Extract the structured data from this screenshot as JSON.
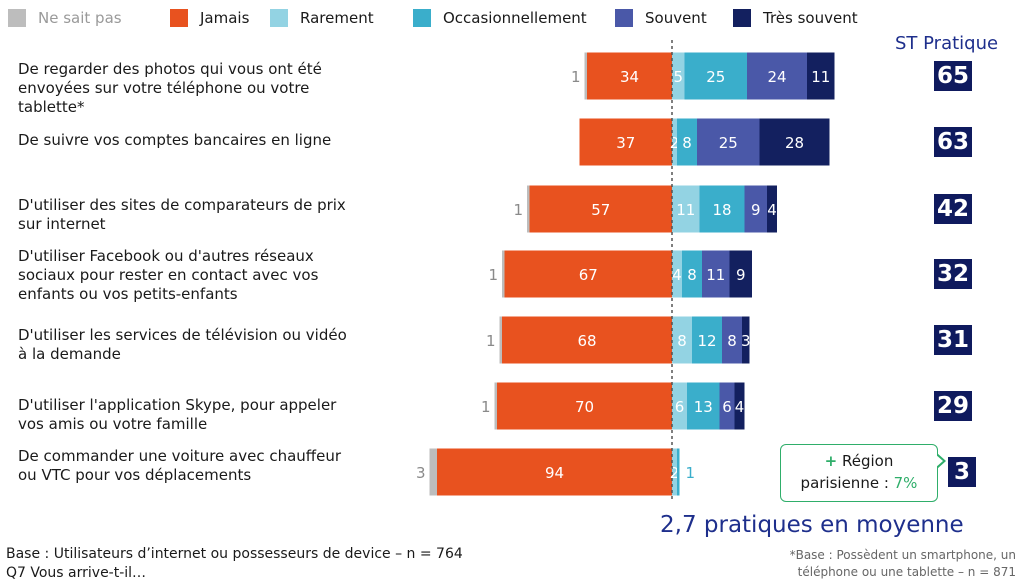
{
  "legend": [
    {
      "label": "Ne sait pas",
      "color": "#bdbdbd"
    },
    {
      "label": "Jamais",
      "color": "#e8521f"
    },
    {
      "label": "Rarement",
      "color": "#93d3e3"
    },
    {
      "label": "Occasionnellement",
      "color": "#3aaecb"
    },
    {
      "label": "Souvent",
      "color": "#4a58a8"
    },
    {
      "label": "Très souvent",
      "color": "#13205f"
    }
  ],
  "rows": [
    {
      "label": "De regarder des photos qui vous ont été envoyées sur votre téléphone ou votre tablette*"
    },
    {
      "label": "De suivre vos comptes bancaires en ligne"
    },
    {
      "label": "D'utiliser des sites de comparateurs de prix sur internet"
    },
    {
      "label": "D'utiliser Facebook ou d'autres réseaux sociaux pour rester en contact avec vos enfants ou vos petits-enfants"
    },
    {
      "label": "D'utiliser les services de télévision ou vidéo à la demande"
    },
    {
      "label": "D'utiliser l'application Skype, pour appeler  vos amis ou votre famille"
    },
    {
      "label": "De commander une voiture avec chauffeur  ou VTC pour vos déplacements"
    }
  ],
  "st_pratique": {
    "title": "ST Pratique",
    "values": [
      "65",
      "63",
      "42",
      "32",
      "31",
      "29",
      "3"
    ]
  },
  "note": {
    "plus": "+",
    "line1": "Région",
    "line2_prefix": "parisienne : ",
    "pct": "7%"
  },
  "average": "2,7 pratiques en moyenne",
  "base_line1": "Base : Utilisateurs d’internet ou possesseurs de device – n = 764",
  "base_line2": "Q7 Vous arrive-t-il…",
  "footnote_line1": "*Base  : Possèdent un smartphone, un",
  "footnote_line2": "téléphone ou une tablette – n = 871",
  "chart_data": {
    "type": "bar",
    "orientation": "horizontal diverging",
    "categories": [
      "De regarder des photos qui vous ont été envoyées sur votre téléphone ou votre tablette*",
      "De suivre vos comptes bancaires en ligne",
      "D'utiliser des sites de comparateurs de prix sur internet",
      "D'utiliser Facebook ou d'autres réseaux sociaux pour rester en contact avec vos enfants ou vos petits-enfants",
      "D'utiliser les services de télévision ou vidéo à la demande",
      "D'utiliser l'application Skype, pour appeler  vos amis ou votre famille",
      "De commander une voiture avec chauffeur  ou VTC pour vos déplacements"
    ],
    "series": [
      {
        "name": "Ne sait pas",
        "color": "#bdbdbd",
        "values": [
          1,
          0,
          1,
          1,
          1,
          1,
          3
        ]
      },
      {
        "name": "Jamais",
        "color": "#e8521f",
        "values": [
          34,
          37,
          57,
          67,
          68,
          70,
          94
        ]
      },
      {
        "name": "Rarement",
        "color": "#93d3e3",
        "values": [
          5,
          2,
          11,
          4,
          8,
          6,
          2
        ]
      },
      {
        "name": "Occasionnellement",
        "color": "#3aaecb",
        "values": [
          25,
          8,
          18,
          8,
          12,
          13,
          1
        ]
      },
      {
        "name": "Souvent",
        "color": "#4a58a8",
        "values": [
          24,
          25,
          9,
          11,
          8,
          6,
          0
        ]
      },
      {
        "name": "Très souvent",
        "color": "#13205f",
        "values": [
          11,
          28,
          4,
          9,
          3,
          4,
          0
        ]
      }
    ],
    "legend_position": "top",
    "grid": false
  }
}
